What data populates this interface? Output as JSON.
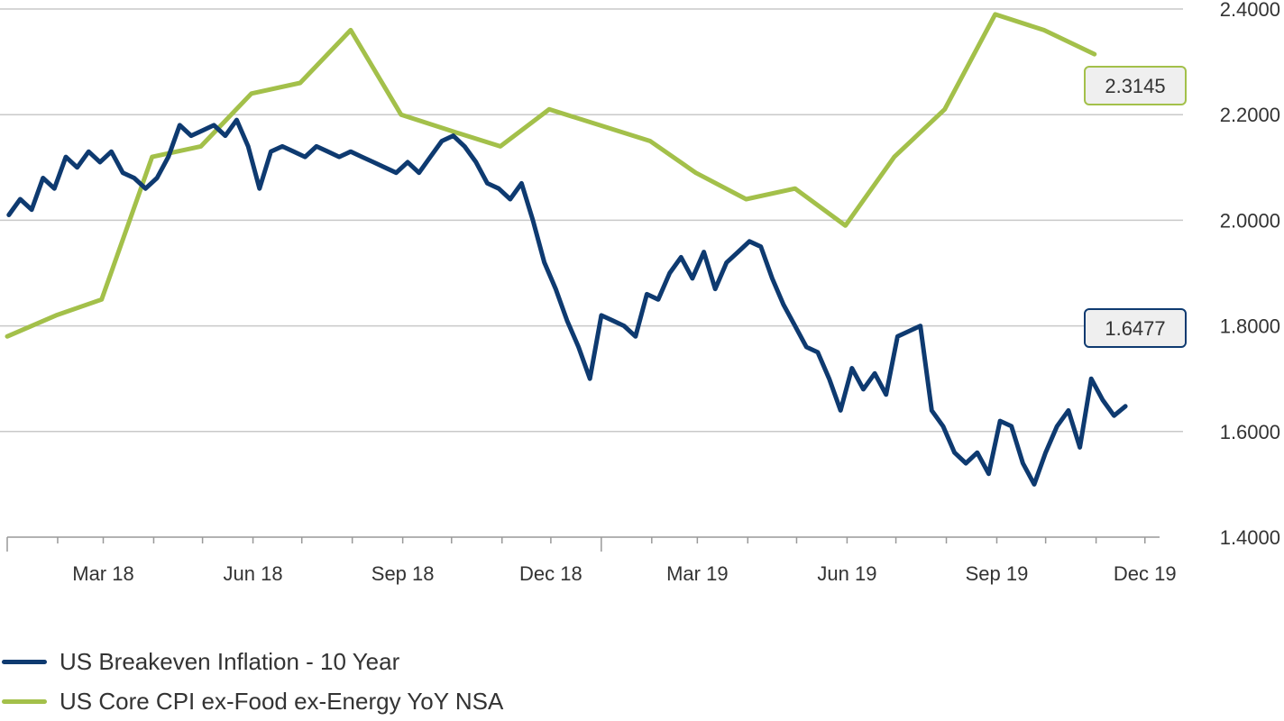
{
  "chart_data": {
    "type": "line",
    "title": "",
    "xlabel": "",
    "ylabel": "",
    "ylim": [
      1.4,
      2.4
    ],
    "y_ticks": [
      "1.4000",
      "1.6000",
      "1.8000",
      "2.0000",
      "2.2000",
      "2.4000"
    ],
    "x_range": [
      "2018-01-01",
      "2019-12-10"
    ],
    "x_ticks": [
      {
        "date": "2018-03-01",
        "label": "Mar 18"
      },
      {
        "date": "2018-06-01",
        "label": "Jun 18"
      },
      {
        "date": "2018-09-01",
        "label": "Sep 18"
      },
      {
        "date": "2018-12-01",
        "label": "Dec 18"
      },
      {
        "date": "2019-03-01",
        "label": "Mar 19"
      },
      {
        "date": "2019-06-01",
        "label": "Jun 19"
      },
      {
        "date": "2019-09-01",
        "label": "Sep 19"
      },
      {
        "date": "2019-12-01",
        "label": "Dec 19"
      }
    ],
    "grid": true,
    "legend_position": "bottom-left",
    "series": [
      {
        "name": "US Breakeven Inflation - 10 Year",
        "color": "#0e3a70",
        "last_value_label": "1.6477",
        "x": [
          "2018-01-02",
          "2018-01-09",
          "2018-01-16",
          "2018-01-23",
          "2018-01-30",
          "2018-02-06",
          "2018-02-13",
          "2018-02-20",
          "2018-02-27",
          "2018-03-06",
          "2018-03-13",
          "2018-03-20",
          "2018-03-27",
          "2018-04-03",
          "2018-04-10",
          "2018-04-17",
          "2018-04-24",
          "2018-05-01",
          "2018-05-08",
          "2018-05-15",
          "2018-05-22",
          "2018-05-29",
          "2018-06-05",
          "2018-06-12",
          "2018-06-19",
          "2018-06-26",
          "2018-07-03",
          "2018-07-10",
          "2018-07-17",
          "2018-07-24",
          "2018-07-31",
          "2018-08-07",
          "2018-08-14",
          "2018-08-21",
          "2018-08-28",
          "2018-09-04",
          "2018-09-11",
          "2018-09-18",
          "2018-09-25",
          "2018-10-02",
          "2018-10-09",
          "2018-10-16",
          "2018-10-23",
          "2018-10-30",
          "2018-11-06",
          "2018-11-13",
          "2018-11-20",
          "2018-11-27",
          "2018-12-04",
          "2018-12-11",
          "2018-12-18",
          "2018-12-25",
          "2019-01-01",
          "2019-01-08",
          "2019-01-15",
          "2019-01-22",
          "2019-01-29",
          "2019-02-05",
          "2019-02-12",
          "2019-02-19",
          "2019-02-26",
          "2019-03-05",
          "2019-03-12",
          "2019-03-19",
          "2019-03-26",
          "2019-04-02",
          "2019-04-09",
          "2019-04-16",
          "2019-04-23",
          "2019-04-30",
          "2019-05-07",
          "2019-05-14",
          "2019-05-21",
          "2019-05-28",
          "2019-06-04",
          "2019-06-11",
          "2019-06-18",
          "2019-06-25",
          "2019-07-02",
          "2019-07-09",
          "2019-07-16",
          "2019-07-23",
          "2019-07-30",
          "2019-08-06",
          "2019-08-13",
          "2019-08-20",
          "2019-08-27",
          "2019-09-03",
          "2019-09-10",
          "2019-09-17",
          "2019-09-24",
          "2019-10-01",
          "2019-10-08",
          "2019-10-15",
          "2019-10-22",
          "2019-10-29",
          "2019-11-05",
          "2019-11-12",
          "2019-11-19"
        ],
        "values": [
          2.01,
          2.04,
          2.02,
          2.08,
          2.06,
          2.12,
          2.1,
          2.13,
          2.11,
          2.13,
          2.09,
          2.08,
          2.06,
          2.08,
          2.12,
          2.18,
          2.16,
          2.17,
          2.18,
          2.16,
          2.19,
          2.14,
          2.06,
          2.13,
          2.14,
          2.13,
          2.12,
          2.14,
          2.13,
          2.12,
          2.13,
          2.12,
          2.11,
          2.1,
          2.09,
          2.11,
          2.09,
          2.12,
          2.15,
          2.16,
          2.14,
          2.11,
          2.07,
          2.06,
          2.04,
          2.07,
          2.0,
          1.92,
          1.87,
          1.81,
          1.76,
          1.7,
          1.82,
          1.81,
          1.8,
          1.78,
          1.86,
          1.85,
          1.9,
          1.93,
          1.89,
          1.94,
          1.87,
          1.92,
          1.94,
          1.96,
          1.95,
          1.89,
          1.84,
          1.8,
          1.76,
          1.75,
          1.7,
          1.64,
          1.72,
          1.68,
          1.71,
          1.67,
          1.78,
          1.79,
          1.8,
          1.64,
          1.61,
          1.56,
          1.54,
          1.56,
          1.52,
          1.62,
          1.61,
          1.54,
          1.5,
          1.56,
          1.61,
          1.64,
          1.57,
          1.7,
          1.66,
          1.63,
          1.6477
        ]
      },
      {
        "name": "US Core CPI ex-Food ex-Energy YoY NSA",
        "color": "#a3c04a",
        "last_value_label": "2.3145",
        "x": [
          "2018-01-01",
          "2018-01-31",
          "2018-02-28",
          "2018-03-31",
          "2018-04-30",
          "2018-05-31",
          "2018-06-30",
          "2018-07-31",
          "2018-08-31",
          "2018-09-30",
          "2018-10-31",
          "2018-11-30",
          "2018-12-31",
          "2019-01-31",
          "2019-02-28",
          "2019-03-31",
          "2019-04-30",
          "2019-05-31",
          "2019-06-30",
          "2019-07-31",
          "2019-08-31",
          "2019-09-30",
          "2019-10-31"
        ],
        "values": [
          1.78,
          1.82,
          1.85,
          2.12,
          2.14,
          2.24,
          2.26,
          2.36,
          2.2,
          2.17,
          2.14,
          2.21,
          2.18,
          2.15,
          2.09,
          2.04,
          2.06,
          1.99,
          2.12,
          2.21,
          2.39,
          2.36,
          2.3145
        ]
      }
    ]
  },
  "legend": {
    "items": [
      {
        "label": "US Breakeven Inflation - 10 Year",
        "color": "#0e3a70"
      },
      {
        "label": "US Core CPI ex-Food ex-Energy YoY NSA",
        "color": "#a3c04a"
      }
    ]
  }
}
